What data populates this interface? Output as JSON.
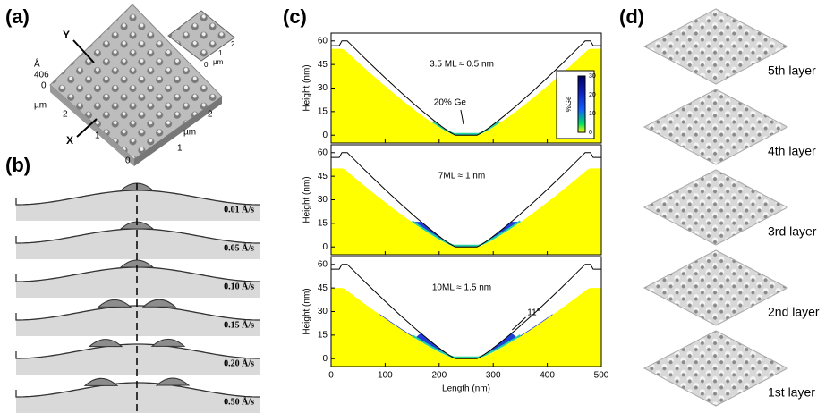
{
  "panels": {
    "a": {
      "label": "(a)",
      "arrows": [
        "Y",
        "X"
      ],
      "z_unit": "Å",
      "z_value": "406",
      "z_zero": "0",
      "axis_unit": "µm",
      "axis_labels": [
        "2",
        "1",
        "0",
        "1",
        "2"
      ],
      "inset_labels": [
        "2",
        "1",
        "0"
      ],
      "inset_unit": "µm"
    },
    "b": {
      "label": "(b)",
      "rates": [
        "0.01 Å/s",
        "0.05 Å/s",
        "0.10 Å/s",
        "0.15 Å/s",
        "0.20 Å/s",
        "0.50 Å/s"
      ]
    },
    "c": {
      "label": "(c)",
      "y_label": "Height (nm)",
      "x_label": "Length (nm)",
      "xlim": [
        0,
        500
      ],
      "ylim": [
        -5,
        65
      ],
      "xticks": [
        0,
        100,
        200,
        300,
        400,
        500
      ],
      "yticks": [
        0,
        15,
        30,
        45,
        60
      ],
      "plots": [
        {
          "title": "3.5 ML ≈ 0.5 nm",
          "annotation": "20% Ge"
        },
        {
          "title": "7ML ≈ 1 nm"
        },
        {
          "title": "10ML ≈ 1.5 nm",
          "annotation": "11°"
        }
      ],
      "colorbar": {
        "label": "%Ge",
        "ticks": [
          0,
          10,
          20,
          30
        ]
      }
    },
    "d": {
      "label": "(d)",
      "layers": [
        "5th layer",
        "4th layer",
        "3rd layer",
        "2nd layer",
        "1st layer"
      ]
    }
  }
}
